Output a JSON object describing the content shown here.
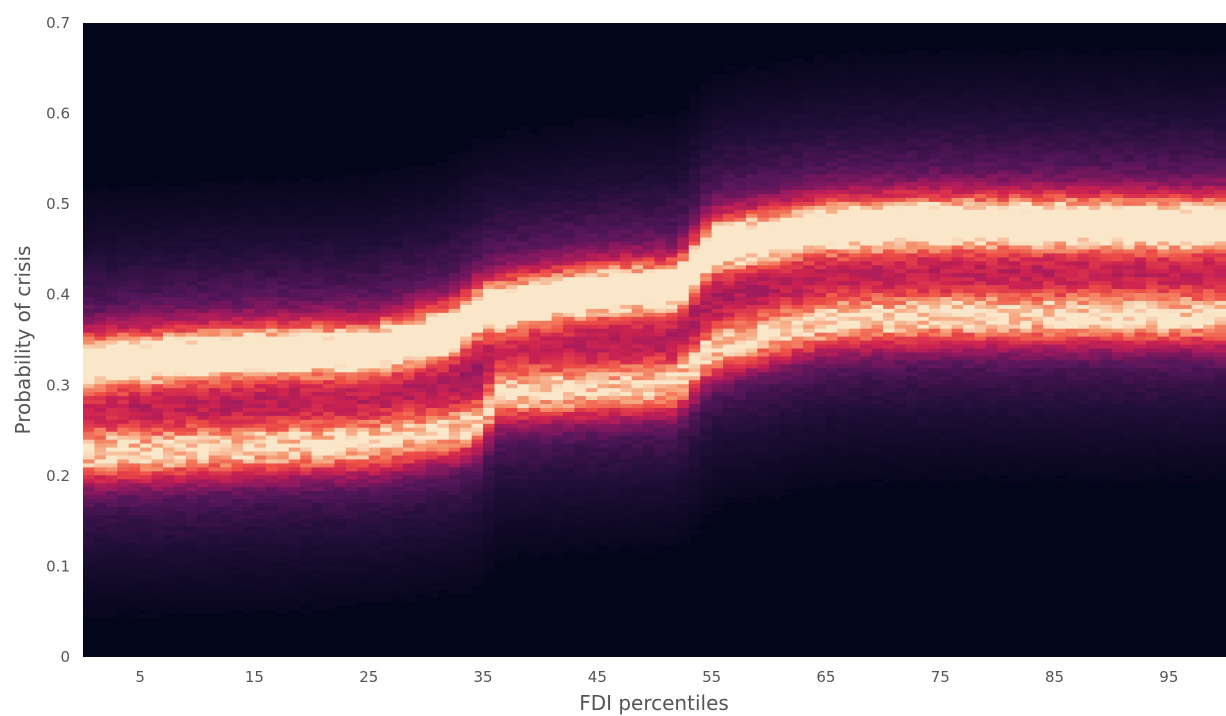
{
  "chart_data": {
    "type": "heatmap",
    "title": "",
    "xlabel": "FDI percentiles",
    "ylabel": "Probability of crisis",
    "xlim": [
      0,
      100
    ],
    "ylim": [
      0,
      0.7
    ],
    "x_ticks": [
      5,
      15,
      25,
      35,
      45,
      55,
      65,
      75,
      85,
      95
    ],
    "y_ticks": [
      0,
      0.1,
      0.2,
      0.3,
      0.4,
      0.5,
      0.6,
      0.7
    ],
    "x_tick_labels": [
      "5",
      "15",
      "25",
      "35",
      "45",
      "55",
      "65",
      "75",
      "85",
      "95"
    ],
    "y_tick_labels": [
      "0",
      "0.1",
      "0.2",
      "0.3",
      "0.4",
      "0.5",
      "0.6",
      "0.7"
    ],
    "grid": false,
    "colormap": "rocket",
    "background_color": "#03051a",
    "density_peaks": [
      {
        "x": [
          0,
          5,
          15,
          25,
          32,
          35,
          45,
          52,
          55,
          65,
          75,
          85,
          95,
          100
        ],
        "y": [
          0.325,
          0.33,
          0.338,
          0.34,
          0.36,
          0.385,
          0.405,
          0.41,
          0.455,
          0.475,
          0.48,
          0.48,
          0.478,
          0.478
        ],
        "intensity": 1.0
      },
      {
        "x": [
          0,
          5,
          15,
          25,
          33,
          35,
          36,
          45,
          52,
          55,
          65,
          75,
          85,
          95,
          100
        ],
        "y": [
          0.225,
          0.225,
          0.23,
          0.235,
          0.25,
          0.26,
          0.29,
          0.295,
          0.3,
          0.34,
          0.37,
          0.375,
          0.375,
          0.375,
          0.375
        ],
        "intensity": 0.75
      }
    ]
  }
}
